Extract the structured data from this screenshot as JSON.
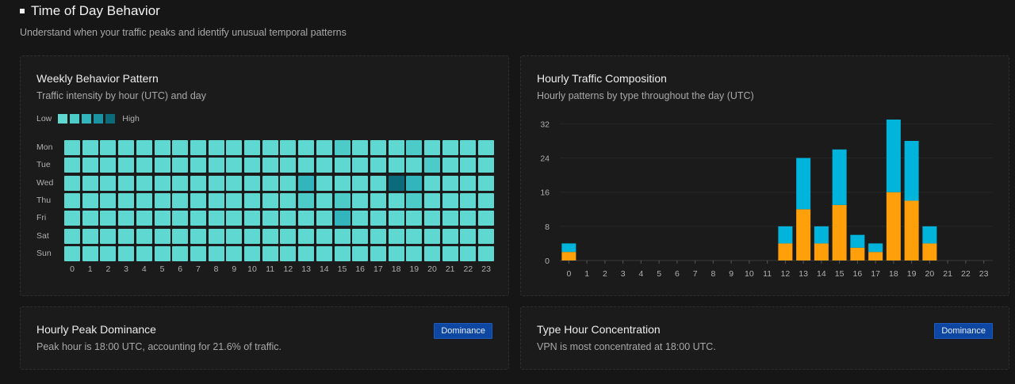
{
  "section": {
    "title": "Time of Day Behavior",
    "subtitle": "Understand when your traffic peaks and identify unusual temporal patterns"
  },
  "heatmap_card": {
    "title": "Weekly Behavior Pattern",
    "subtitle": "Traffic intensity by hour (UTC) and day",
    "legend_low": "Low",
    "legend_high": "High",
    "legend_colors": [
      "#5ed8d0",
      "#4ccbc9",
      "#33b5bd",
      "#1a93a3",
      "#0c6b7a"
    ],
    "days": [
      "Mon",
      "Tue",
      "Wed",
      "Thu",
      "Fri",
      "Sat",
      "Sun"
    ],
    "hours": [
      "0",
      "1",
      "2",
      "3",
      "4",
      "5",
      "6",
      "7",
      "8",
      "9",
      "10",
      "11",
      "12",
      "13",
      "14",
      "15",
      "16",
      "17",
      "18",
      "19",
      "20",
      "21",
      "22",
      "23"
    ],
    "intensity": [
      [
        0,
        0,
        0,
        0,
        0,
        0,
        0,
        0,
        0,
        0,
        0,
        0,
        0,
        0,
        0,
        1,
        0,
        0,
        0,
        1,
        0,
        0,
        0,
        0
      ],
      [
        0,
        0,
        0,
        0,
        0,
        0,
        0,
        0,
        0,
        0,
        0,
        0,
        0,
        0,
        0,
        0,
        0,
        0,
        0,
        0,
        1,
        0,
        0,
        0
      ],
      [
        0,
        0,
        0,
        0,
        0,
        0,
        0,
        0,
        0,
        0,
        0,
        0,
        0,
        2,
        0,
        0,
        0,
        0,
        4,
        2,
        0,
        0,
        0,
        0
      ],
      [
        0,
        0,
        0,
        0,
        0,
        0,
        0,
        0,
        0,
        0,
        0,
        0,
        0,
        1,
        0,
        1,
        0,
        0,
        0,
        1,
        0,
        0,
        0,
        0
      ],
      [
        0,
        0,
        0,
        0,
        0,
        0,
        0,
        0,
        0,
        0,
        0,
        0,
        0,
        0,
        0,
        2,
        0,
        0,
        0,
        0,
        0,
        0,
        0,
        0
      ],
      [
        0,
        0,
        0,
        0,
        0,
        0,
        0,
        0,
        0,
        0,
        0,
        0,
        0,
        0,
        0,
        0,
        0,
        0,
        0,
        0,
        0,
        0,
        0,
        0
      ],
      [
        0,
        0,
        0,
        0,
        0,
        0,
        0,
        0,
        0,
        0,
        0,
        0,
        0,
        0,
        0,
        0,
        0,
        0,
        0,
        0,
        0,
        0,
        0,
        0
      ]
    ]
  },
  "composition_card": {
    "title": "Hourly Traffic Composition",
    "subtitle": "Hourly patterns by type throughout the day (UTC)"
  },
  "chart_data": {
    "type": "bar",
    "stacked": true,
    "categories": [
      "0",
      "1",
      "2",
      "3",
      "4",
      "5",
      "6",
      "7",
      "8",
      "9",
      "10",
      "11",
      "12",
      "13",
      "14",
      "15",
      "16",
      "17",
      "18",
      "19",
      "20",
      "21",
      "22",
      "23"
    ],
    "series": [
      {
        "color": "#ff9f0a",
        "values": [
          2,
          0,
          0,
          0,
          0,
          0,
          0,
          0,
          0,
          0,
          0,
          0,
          4,
          12,
          4,
          13,
          3,
          2,
          16,
          14,
          4,
          0,
          0,
          0
        ]
      },
      {
        "color": "#00b4dc",
        "values": [
          2,
          0,
          0,
          0,
          0,
          0,
          0,
          0,
          0,
          0,
          0,
          0,
          4,
          12,
          4,
          13,
          3,
          2,
          17,
          14,
          4,
          0,
          0,
          0
        ]
      }
    ],
    "yticks": [
      0,
      8,
      16,
      24,
      32
    ],
    "ylim": [
      0,
      33
    ],
    "grid": true
  },
  "dominance_card": {
    "title": "Hourly Peak Dominance",
    "text": "Peak hour is 18:00 UTC, accounting for 21.6% of traffic.",
    "badge": "Dominance"
  },
  "concentration_card": {
    "title": "Type Hour Concentration",
    "text": "VPN is most concentrated at 18:00 UTC.",
    "badge": "Dominance"
  }
}
